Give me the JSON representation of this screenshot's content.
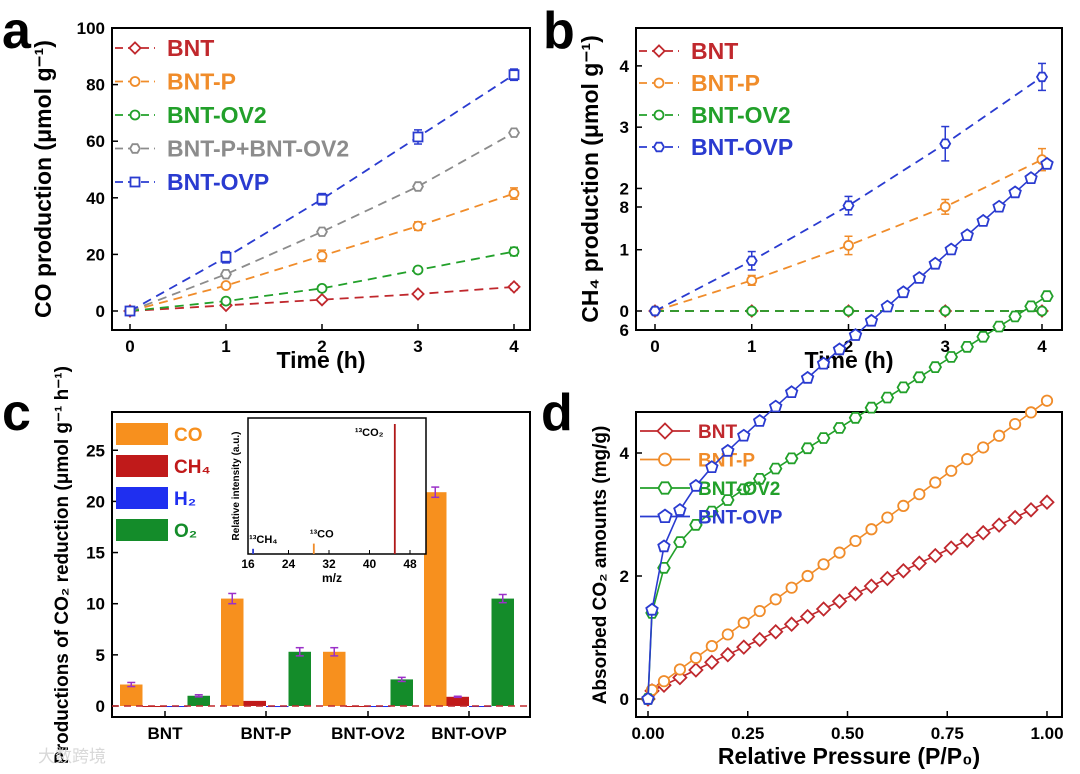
{
  "panels": {
    "a": "a",
    "b": "b",
    "c": "c",
    "d": "d"
  },
  "watermark": "大数跨境",
  "chart_data": [
    {
      "panel": "a",
      "type": "line",
      "xlabel": "Time (h)",
      "ylabel": "CO production (μmol g⁻¹)",
      "xlim": [
        0,
        4
      ],
      "ylim": [
        0,
        100
      ],
      "xticks": [
        "0",
        "1",
        "2",
        "3",
        "4"
      ],
      "yticks": [
        "0",
        "20",
        "40",
        "60",
        "80",
        "100"
      ],
      "x": [
        0,
        1,
        2,
        3,
        4
      ],
      "legend_position": "top-left",
      "series": [
        {
          "name": "BNT",
          "color": "#c0282d",
          "marker": "diamond",
          "values": [
            0,
            2,
            4,
            6,
            8.5
          ],
          "err": [
            0.3,
            0.5,
            0.6,
            0.8,
            1.0
          ]
        },
        {
          "name": "BNT-P",
          "color": "#f08c2a",
          "marker": "circle",
          "values": [
            0,
            9,
            19.5,
            30,
            41.5
          ],
          "err": [
            0.3,
            1.0,
            2.0,
            1.5,
            2.0
          ]
        },
        {
          "name": "BNT-OV2",
          "color": "#22a02a",
          "marker": "circle",
          "values": [
            0,
            3.5,
            8,
            14.5,
            21
          ],
          "err": [
            0.3,
            0.8,
            0.8,
            1.0,
            1.5
          ]
        },
        {
          "name": "BNT-P+BNT-OV2",
          "color": "#8c8c8c",
          "marker": "hexagon",
          "values": [
            0,
            13,
            28,
            44,
            63
          ],
          "err": [
            0.3,
            0.5,
            0.5,
            0.5,
            0.5
          ]
        },
        {
          "name": "BNT-OVP",
          "color": "#2a3bd0",
          "marker": "square",
          "values": [
            0,
            19,
            39.5,
            61.5,
            83.5
          ],
          "err": [
            0.3,
            2.0,
            2.0,
            2.5,
            2.0
          ]
        }
      ]
    },
    {
      "panel": "b",
      "type": "line",
      "xlabel": "Time (h)",
      "ylabel": "CH₄ production (μmol g⁻¹)",
      "xlim": [
        0,
        4
      ],
      "ylim": [
        0,
        4.3
      ],
      "xticks": [
        "0",
        "1",
        "2",
        "3",
        "4"
      ],
      "yticks": [
        "0",
        "1",
        "2",
        "3",
        "4"
      ],
      "x": [
        0,
        1,
        2,
        3,
        4
      ],
      "legend_position": "top-left",
      "series": [
        {
          "name": "BNT",
          "color": "#c0282d",
          "marker": "diamond",
          "values": [
            0,
            0,
            0,
            0,
            0
          ],
          "err": [
            0,
            0,
            0,
            0,
            0
          ]
        },
        {
          "name": "BNT-P",
          "color": "#f08c2a",
          "marker": "circle",
          "values": [
            0,
            0.5,
            1.07,
            1.7,
            2.47
          ],
          "err": [
            0,
            0.08,
            0.15,
            0.12,
            0.18
          ]
        },
        {
          "name": "BNT-OV2",
          "color": "#22a02a",
          "marker": "circle",
          "values": [
            0,
            0,
            0,
            0,
            0
          ],
          "err": [
            0,
            0,
            0,
            0,
            0
          ]
        },
        {
          "name": "BNT-OVP",
          "color": "#2a3bd0",
          "marker": "hexagon",
          "values": [
            0,
            0.82,
            1.72,
            2.73,
            3.82
          ],
          "err": [
            0,
            0.15,
            0.15,
            0.28,
            0.22
          ]
        }
      ]
    },
    {
      "panel": "c",
      "type": "bar",
      "xlabel": "",
      "ylabel": "Productions of CO₂ reduction (μmol g⁻¹ h⁻¹)",
      "ylim": [
        -1,
        27
      ],
      "yticks": [
        "0",
        "5",
        "10",
        "15",
        "20",
        "25"
      ],
      "categories": [
        "BNT",
        "BNT-P",
        "BNT-OV2",
        "BNT-OVP"
      ],
      "legend_position": "top-left",
      "series": [
        {
          "name": "CO",
          "color": "#f7901e",
          "values": [
            2.1,
            10.5,
            5.3,
            20.9
          ],
          "err": [
            0.2,
            0.5,
            0.4,
            0.5
          ]
        },
        {
          "name": "CH₄",
          "color": "#c01a1a",
          "values": [
            -0.1,
            0.5,
            -0.1,
            0.9
          ],
          "err": [
            0,
            0,
            0,
            0.05
          ]
        },
        {
          "name": "H₂",
          "color": "#1f2ff0",
          "values": [
            -0.1,
            -0.1,
            -0.1,
            -0.1
          ],
          "err": [
            0,
            0,
            0,
            0
          ]
        },
        {
          "name": "O₂",
          "color": "#148c2a",
          "values": [
            1.0,
            5.3,
            2.6,
            10.5
          ],
          "err": [
            0.1,
            0.4,
            0.2,
            0.4
          ]
        }
      ],
      "inset": {
        "xlabel": "m/z",
        "ylabel": "Relative intensity (a.u.)",
        "xlim": [
          16,
          48
        ],
        "xticks": [
          "16",
          "24",
          "32",
          "40",
          "48"
        ],
        "peaks": [
          {
            "label": "¹³CH₄",
            "x": 17,
            "h": 0.04,
            "color": "#2a3bd0"
          },
          {
            "label": "¹³CO",
            "x": 29,
            "h": 0.08,
            "color": "#f08c2a"
          },
          {
            "label": "¹³CO₂",
            "x": 45,
            "h": 1.0,
            "color": "#b01818"
          }
        ]
      }
    },
    {
      "panel": "d",
      "type": "line",
      "xlabel": "Relative Pressure (P/P₀)",
      "ylabel": "Absorbed CO₂ amounts (mg/g)",
      "xlim": [
        -0.03,
        1.02
      ],
      "ylim": [
        -0.3,
        8.9
      ],
      "xticks": [
        "0.00",
        "0.25",
        "0.50",
        "0.75",
        "1.00"
      ],
      "yticks": [
        "0",
        "2",
        "4",
        "6",
        "8"
      ],
      "legend_position": "top-left",
      "series": [
        {
          "name": "BNT",
          "color": "#c0282d",
          "marker": "diamond",
          "shape": "linear",
          "start": 0.1,
          "end": 3.2
        },
        {
          "name": "BNT-P",
          "color": "#f08c2a",
          "marker": "circle",
          "shape": "linear",
          "start": 0.1,
          "end": 4.85
        },
        {
          "name": "BNT-OV2",
          "color": "#22a02a",
          "marker": "hexagon",
          "shape": "langmuir",
          "jump": 1.4,
          "end": 6.55
        },
        {
          "name": "BNT-OVP",
          "color": "#2a3bd0",
          "marker": "pentagon",
          "shape": "langmuir",
          "jump": 1.45,
          "end": 8.7
        }
      ]
    }
  ]
}
